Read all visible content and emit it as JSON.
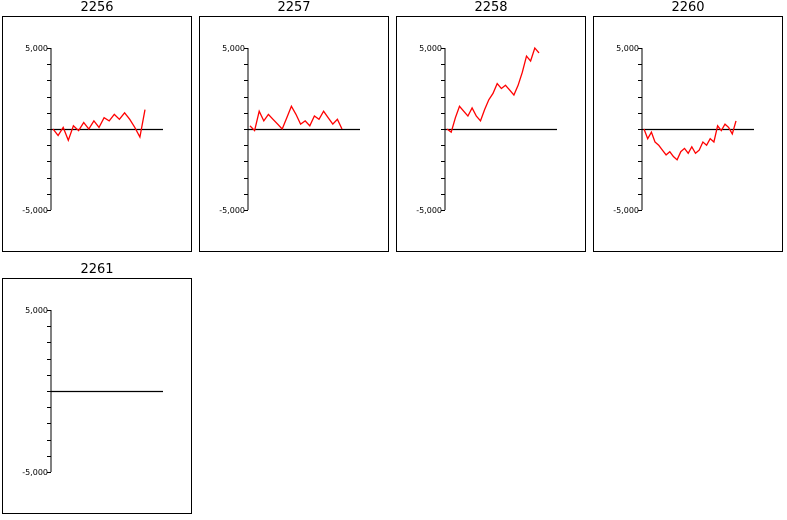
{
  "chart_data": [
    {
      "type": "line",
      "title": "2256",
      "ylim": [
        -5000,
        5000
      ],
      "ytick_labels": [
        "5,000",
        "-5,000"
      ],
      "series": [
        {
          "color": "#ff0000",
          "values": [
            0,
            -400,
            100,
            -700,
            200,
            -100,
            400,
            0,
            500,
            100,
            700,
            500,
            900,
            600,
            1000,
            600,
            100,
            -500,
            1200
          ]
        }
      ]
    },
    {
      "type": "line",
      "title": "2257",
      "ylim": [
        -5000,
        5000
      ],
      "ytick_labels": [
        "5,000",
        "-5,000"
      ],
      "series": [
        {
          "color": "#ff0000",
          "values": [
            200,
            -100,
            1100,
            500,
            900,
            600,
            300,
            0,
            700,
            1400,
            900,
            300,
            500,
            200,
            800,
            600,
            1100,
            700,
            300,
            600,
            0
          ]
        }
      ]
    },
    {
      "type": "line",
      "title": "2258",
      "ylim": [
        -5000,
        5000
      ],
      "ytick_labels": [
        "5,000",
        "-5,000"
      ],
      "series": [
        {
          "color": "#ff0000",
          "values": [
            0,
            -200,
            700,
            1400,
            1100,
            800,
            1300,
            800,
            500,
            1200,
            1800,
            2200,
            2800,
            2500,
            2700,
            2400,
            2100,
            2700,
            3500,
            4500,
            4200,
            5000,
            4700
          ]
        }
      ]
    },
    {
      "type": "line",
      "title": "2260",
      "ylim": [
        -5000,
        5000
      ],
      "ytick_labels": [
        "5,000",
        "-5,000"
      ],
      "series": [
        {
          "color": "#ff0000",
          "values": [
            0,
            -600,
            -200,
            -800,
            -1000,
            -1300,
            -1600,
            -1400,
            -1700,
            -1900,
            -1400,
            -1200,
            -1500,
            -1100,
            -1500,
            -1300,
            -800,
            -1000,
            -600,
            -800,
            200,
            -100,
            300,
            100,
            -300,
            500
          ]
        }
      ]
    },
    {
      "type": "line",
      "title": "2261",
      "ylim": [
        -5000,
        5000
      ],
      "ytick_labels": [
        "5,000",
        "-5,000"
      ],
      "series": []
    }
  ]
}
